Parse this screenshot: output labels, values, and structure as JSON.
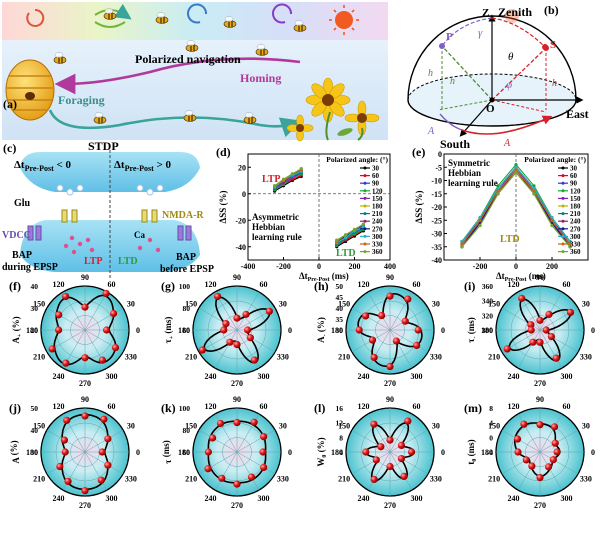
{
  "panels": {
    "a": {
      "letter": "(a)",
      "label_polarized": "Polarized navigation",
      "label_homing": "Homing",
      "label_foraging": "Foraging"
    },
    "b": {
      "letter": "(b)",
      "label_zenith": "Zenith",
      "label_east": "East",
      "label_south": "South",
      "label_Z": "Z",
      "label_O": "O",
      "label_P": "P",
      "label_S": "S",
      "label_hp1": "h",
      "label_hp2": "h",
      "label_hs": "h",
      "label_Ap": "A",
      "label_As": "A",
      "label_theta": "θ",
      "label_phi": "φ",
      "label_gamma": "γ"
    },
    "c": {
      "letter": "(c)",
      "title": "STDP",
      "left_cond": "Δt",
      "left_cond_sub": "Pre-Post",
      "left_cond_tail": " < 0",
      "right_cond": "Δt",
      "right_cond_sub": "Pre-Post",
      "right_cond_tail": " > 0",
      "glu": "Glu",
      "nmdar": "NMDA-R",
      "vdcc": "VDCC",
      "ltp": "LTP",
      "ltd": "LTD",
      "ca": "Ca",
      "bap_left_1": "BAP",
      "bap_left_2": "during EPSP",
      "bap_right_1": "BAP",
      "bap_right_2": "before EPSP"
    },
    "d": {
      "letter": "(d)",
      "ylabel": "ΔSS (%)",
      "xlabel": "Δt",
      "xlabel_sub": "Pre-Post",
      "xlabel_unit": " (ms)",
      "ltp": "LTP",
      "ltd": "LTD",
      "rule_1": "Asymmetric",
      "rule_2": "Hebbian",
      "rule_3": "learning rule",
      "legend_title": "Polarized angle: (°)"
    },
    "e": {
      "letter": "(e)",
      "ylabel": "ΔSS (%)",
      "xlabel": "Δt",
      "xlabel_sub": "Pre-Post",
      "xlabel_unit": " (ms)",
      "ltd": "LTD",
      "rule_1": "Symmetric",
      "rule_2": "Hebbian",
      "rule_3": "learning rule",
      "legend_title": "Polarized angle: (°)"
    },
    "polars": [
      {
        "letter": "(f)",
        "ylabel": "A",
        "ysub": "+",
        "yunit": " (%)",
        "ticks": [
          "40",
          "30",
          "20"
        ]
      },
      {
        "letter": "(g)",
        "ylabel": "τ",
        "ysub": "+",
        "yunit": " (ms)",
        "ticks": [
          "100",
          "80",
          "60"
        ]
      },
      {
        "letter": "(h)",
        "ylabel": "A",
        "ysub": "-",
        "yunit": " (%)",
        "ticks": [
          "50",
          "45",
          "40",
          "35",
          "30"
        ]
      },
      {
        "letter": "(i)",
        "ylabel": "τ",
        "ysub": "-",
        "yunit": " (ms)",
        "ticks": [
          "360",
          "340",
          "320",
          "300"
        ]
      },
      {
        "letter": "(j)",
        "ylabel": "A",
        "ysub": "",
        "yunit": " (%)",
        "ticks": [
          "50",
          "40",
          "30"
        ]
      },
      {
        "letter": "(k)",
        "ylabel": "τ",
        "ysub": "",
        "yunit": " (ms)",
        "ticks": [
          "100",
          "80",
          "60"
        ]
      },
      {
        "letter": "(l)",
        "ylabel": "W",
        "ysub": "0",
        "yunit": " (%)",
        "ticks": [
          "16",
          "12",
          "8",
          "4"
        ]
      },
      {
        "letter": "(m)",
        "ylabel": "t",
        "ysub": "0",
        "yunit": " (ms)",
        "ticks": [
          "8",
          "4",
          "0",
          "-4"
        ]
      }
    ],
    "polar_angles": [
      "90",
      "60",
      "30",
      "0",
      "330",
      "300",
      "270",
      "240",
      "210",
      "180",
      "150",
      "120"
    ]
  },
  "chart_data": [
    {
      "type": "line",
      "panel": "d",
      "title": "",
      "xlabel": "ΔtPre-Post (ms)",
      "ylabel": "ΔSS (%)",
      "xlim": [
        -400,
        400
      ],
      "ylim": [
        -50,
        30
      ],
      "xticks": [
        -400,
        -200,
        0,
        200,
        400
      ],
      "yticks": [
        -40,
        -20,
        0,
        20
      ],
      "ltp_x": [
        -250,
        -200,
        -150,
        -100
      ],
      "ltd_x": [
        100,
        150,
        200,
        250
      ],
      "series": [
        {
          "name": "30",
          "color": "#000000",
          "ltp": [
            2,
            6,
            10,
            13
          ],
          "ltd": [
            -40,
            -36,
            -32,
            -28
          ]
        },
        {
          "name": "60",
          "color": "#e8001c",
          "ltp": [
            3,
            7,
            11,
            14
          ],
          "ltd": [
            -39,
            -35,
            -31,
            -27
          ]
        },
        {
          "name": "90",
          "color": "#2c3ad6",
          "ltp": [
            4,
            8,
            12,
            15
          ],
          "ltd": [
            -38,
            -34,
            -30,
            -26
          ]
        },
        {
          "name": "120",
          "color": "#14a83c",
          "ltp": [
            3,
            7,
            12,
            15
          ],
          "ltd": [
            -39,
            -34,
            -30,
            -27
          ]
        },
        {
          "name": "150",
          "color": "#8b1fb5",
          "ltp": [
            4,
            8,
            12,
            16
          ],
          "ltd": [
            -38,
            -33,
            -29,
            -25
          ]
        },
        {
          "name": "180",
          "color": "#c0b000",
          "ltp": [
            5,
            9,
            13,
            17
          ],
          "ltd": [
            -37,
            -33,
            -29,
            -25
          ]
        },
        {
          "name": "210",
          "color": "#0a7a8a",
          "ltp": [
            4,
            9,
            13,
            16
          ],
          "ltd": [
            -38,
            -34,
            -29,
            -26
          ]
        },
        {
          "name": "240",
          "color": "#a01a6a",
          "ltp": [
            5,
            9,
            14,
            17
          ],
          "ltd": [
            -37,
            -32,
            -28,
            -24
          ]
        },
        {
          "name": "270",
          "color": "#1a1a8c",
          "ltp": [
            6,
            10,
            14,
            18
          ],
          "ltd": [
            -36,
            -32,
            -28,
            -24
          ]
        },
        {
          "name": "300",
          "color": "#2bb0c8",
          "ltp": [
            5,
            10,
            14,
            17
          ],
          "ltd": [
            -37,
            -33,
            -28,
            -25
          ]
        },
        {
          "name": "330",
          "color": "#c86414",
          "ltp": [
            6,
            10,
            15,
            18
          ],
          "ltd": [
            -36,
            -31,
            -27,
            -23
          ]
        },
        {
          "name": "360",
          "color": "#6fa830",
          "ltp": [
            6,
            11,
            15,
            19
          ],
          "ltd": [
            -35,
            -31,
            -27,
            -23
          ]
        }
      ]
    },
    {
      "type": "line",
      "panel": "e",
      "title": "",
      "xlabel": "ΔtPre-Post (ms)",
      "ylabel": "ΔSS (%)",
      "xlim": [
        -400,
        400
      ],
      "ylim": [
        -40,
        0
      ],
      "xticks": [
        -200,
        0,
        200
      ],
      "yticks": [
        -40,
        -35,
        -30,
        -25,
        -20,
        -15,
        -10,
        -5,
        0
      ],
      "x": [
        -300,
        -200,
        -100,
        0,
        100,
        200,
        300
      ],
      "series": [
        {
          "name": "30",
          "color": "#000000",
          "values": [
            -33,
            -25,
            -13,
            -5,
            -13,
            -25,
            -33
          ]
        },
        {
          "name": "60",
          "color": "#e8001c",
          "values": [
            -34,
            -26,
            -14,
            -6,
            -14,
            -26,
            -34
          ]
        },
        {
          "name": "90",
          "color": "#2c3ad6",
          "values": [
            -35,
            -26,
            -15,
            -6,
            -15,
            -26,
            -35
          ]
        },
        {
          "name": "120",
          "color": "#14a83c",
          "values": [
            -33,
            -24,
            -12,
            -4,
            -12,
            -24,
            -33
          ]
        },
        {
          "name": "150",
          "color": "#8b1fb5",
          "values": [
            -34,
            -25,
            -14,
            -5,
            -14,
            -25,
            -34
          ]
        },
        {
          "name": "180",
          "color": "#c0b000",
          "values": [
            -35,
            -27,
            -15,
            -7,
            -15,
            -27,
            -35
          ]
        },
        {
          "name": "210",
          "color": "#0a7a8a",
          "values": [
            -33,
            -25,
            -13,
            -5,
            -13,
            -25,
            -33
          ]
        },
        {
          "name": "240",
          "color": "#a01a6a",
          "values": [
            -34,
            -26,
            -15,
            -6,
            -15,
            -26,
            -34
          ]
        },
        {
          "name": "270",
          "color": "#1a1a8c",
          "values": [
            -35,
            -26,
            -14,
            -6,
            -14,
            -26,
            -35
          ]
        },
        {
          "name": "300",
          "color": "#2bb0c8",
          "values": [
            -33,
            -24,
            -13,
            -5,
            -13,
            -24,
            -33
          ]
        },
        {
          "name": "330",
          "color": "#c86414",
          "values": [
            -34,
            -25,
            -14,
            -6,
            -14,
            -25,
            -34
          ]
        },
        {
          "name": "360",
          "color": "#6fa830",
          "values": [
            -35,
            -27,
            -15,
            -7,
            -15,
            -27,
            -35
          ]
        }
      ]
    },
    {
      "type": "scatter",
      "panel": "f",
      "ylabel": "A+ (%)",
      "angles": [
        0,
        30,
        60,
        90,
        120,
        150,
        180,
        210,
        240,
        270,
        300,
        330
      ],
      "values": [
        0.55,
        0.75,
        0.9,
        0.55,
        0.85,
        0.75,
        0.6,
        0.8,
        0.9,
        0.6,
        0.85,
        0.8
      ]
    },
    {
      "type": "scatter",
      "panel": "g",
      "ylabel": "τ+ (ms)",
      "angles": [
        0,
        30,
        60,
        90,
        120,
        150,
        180,
        210,
        240,
        270,
        300,
        330
      ],
      "values": [
        0.3,
        0.85,
        0.35,
        0.3,
        0.85,
        0.35,
        0.3,
        0.85,
        0.35,
        0.3,
        0.85,
        0.35
      ]
    },
    {
      "type": "scatter",
      "panel": "h",
      "ylabel": "A- (%)",
      "angles": [
        0,
        30,
        60,
        90,
        120,
        150,
        180,
        210,
        240,
        270,
        300,
        330
      ],
      "values": [
        0.7,
        0.4,
        0.75,
        0.8,
        0.35,
        0.7,
        0.7,
        0.4,
        0.75,
        0.8,
        0.35,
        0.7
      ]
    },
    {
      "type": "scatter",
      "panel": "i",
      "ylabel": "τ- (ms)",
      "angles": [
        0,
        30,
        60,
        90,
        120,
        150,
        180,
        210,
        240,
        270,
        300,
        330
      ],
      "values": [
        0.2,
        0.8,
        0.35,
        0.25,
        0.8,
        0.3,
        0.2,
        0.8,
        0.35,
        0.25,
        0.8,
        0.3
      ]
    },
    {
      "type": "scatter",
      "panel": "j",
      "ylabel": "A (%)",
      "angles": [
        0,
        30,
        60,
        90,
        120,
        150,
        180,
        210,
        240,
        270,
        300,
        330
      ],
      "values": [
        0.45,
        0.6,
        0.8,
        0.85,
        0.8,
        0.6,
        0.45,
        0.6,
        0.8,
        0.85,
        0.8,
        0.6
      ]
    },
    {
      "type": "scatter",
      "panel": "k",
      "ylabel": "τ (ms)",
      "angles": [
        0,
        30,
        60,
        90,
        120,
        150,
        180,
        210,
        240,
        270,
        300,
        330
      ],
      "values": [
        0.65,
        0.7,
        0.72,
        0.7,
        0.72,
        0.7,
        0.65,
        0.7,
        0.72,
        0.7,
        0.72,
        0.7
      ]
    },
    {
      "type": "scatter",
      "panel": "l",
      "ylabel": "W0 (%)",
      "angles": [
        0,
        30,
        60,
        90,
        120,
        150,
        180,
        210,
        240,
        270,
        300,
        330
      ],
      "values": [
        0.55,
        0.3,
        0.75,
        0.3,
        0.7,
        0.3,
        0.55,
        0.3,
        0.75,
        0.3,
        0.7,
        0.3
      ]
    },
    {
      "type": "scatter",
      "panel": "m",
      "ylabel": "t0 (ms)",
      "angles": [
        0,
        30,
        60,
        90,
        120,
        150,
        180,
        210,
        240,
        270,
        300,
        330
      ],
      "values": [
        0.45,
        0.4,
        0.6,
        0.65,
        0.7,
        0.65,
        0.5,
        0.3,
        0.4,
        0.55,
        0.45,
        0.35
      ]
    }
  ]
}
